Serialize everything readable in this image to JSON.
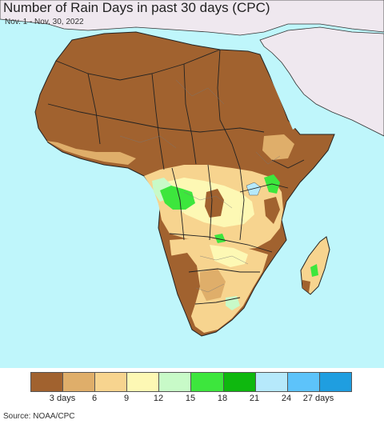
{
  "title": "Number of Rain Days in past 30 days (CPC)",
  "subtitle": "Nov. 1 - Nov. 30, 2022",
  "source": "Source: NOAA/CPC",
  "colors": {
    "ocean": "#bff6fb",
    "land_outside": "#efe8ef",
    "brown": "#a1622f",
    "dark_tan": "#dfae6a",
    "tan": "#f7d48f",
    "pale_yellow": "#fdf8b4",
    "pale_green": "#c8fac8",
    "green": "#3de63d",
    "dark_green": "#0fb80f",
    "pale_blue": "#b6e9fb",
    "blue": "#5dc3fa",
    "deep_blue": "#1f9ee0",
    "border": "#222222",
    "subborder": "#777777"
  },
  "legend": {
    "swatches": [
      "#a1622f",
      "#dfae6a",
      "#f7d48f",
      "#fdf8b4",
      "#c8fac8",
      "#3de63d",
      "#0fb80f",
      "#b6e9fb",
      "#5dc3fa",
      "#1f9ee0"
    ],
    "labels": [
      "3 days",
      "6",
      "9",
      "12",
      "15",
      "18",
      "21",
      "24",
      "27 days"
    ]
  }
}
